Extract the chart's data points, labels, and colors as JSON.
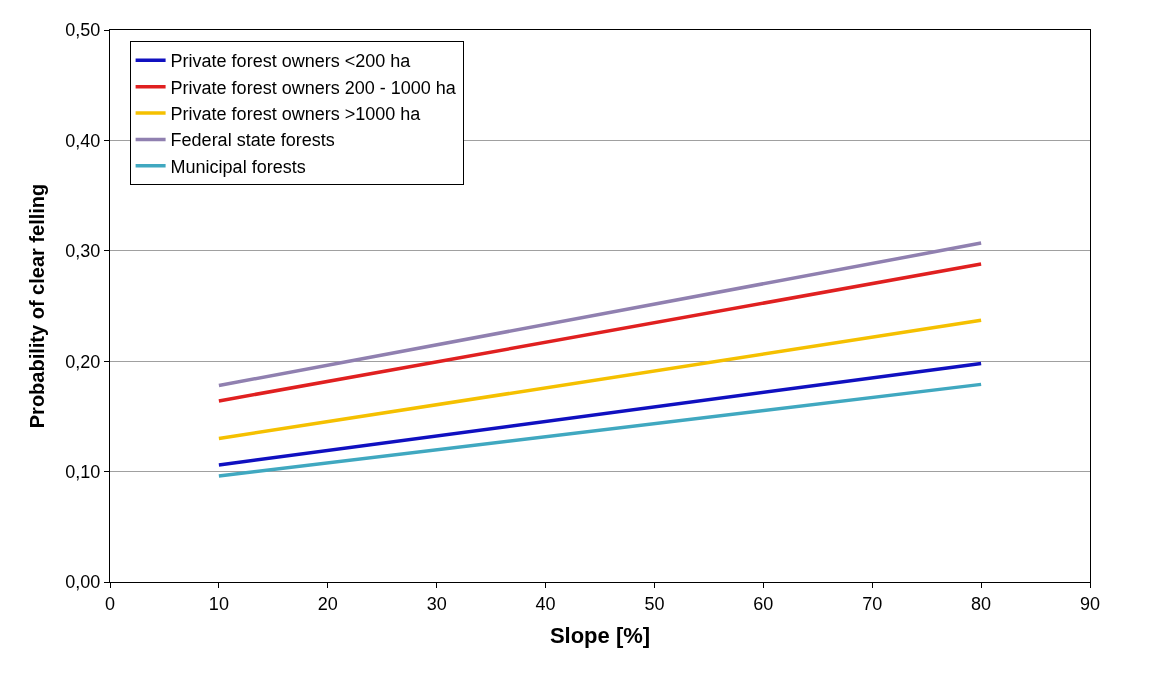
{
  "chart_data": {
    "type": "line",
    "xlabel": "Slope [%]",
    "ylabel": "Probability of clear felling",
    "xlim": [
      0,
      90
    ],
    "xticks": [
      0,
      10,
      20,
      30,
      40,
      50,
      60,
      70,
      80,
      90
    ],
    "ylim": [
      0,
      0.5
    ],
    "yticks": [
      {
        "value": 0,
        "label": "0,00"
      },
      {
        "value": 0.1,
        "label": "0,10"
      },
      {
        "value": 0.2,
        "label": "0,20"
      },
      {
        "value": 0.3,
        "label": "0,30"
      },
      {
        "value": 0.4,
        "label": "0,40"
      },
      {
        "value": 0.5,
        "label": "0,50"
      }
    ],
    "x": [
      10,
      80
    ],
    "series": [
      {
        "name": "Private forest owners <200 ha",
        "color": "#1010c0",
        "values": [
          0.106,
          0.198
        ]
      },
      {
        "name": "Private forest owners 200 - 1000 ha",
        "color": "#e02020",
        "values": [
          0.164,
          0.288
        ]
      },
      {
        "name": "Private forest owners >1000 ha",
        "color": "#f5c000",
        "values": [
          0.13,
          0.237
        ]
      },
      {
        "name": "Federal state forests",
        "color": "#9080b0",
        "values": [
          0.178,
          0.307
        ]
      },
      {
        "name": "Municipal forests",
        "color": "#40a8c0",
        "values": [
          0.096,
          0.179
        ]
      }
    ],
    "grid": "y",
    "legend": "top left",
    "marker": "none",
    "line_style": "solid"
  }
}
